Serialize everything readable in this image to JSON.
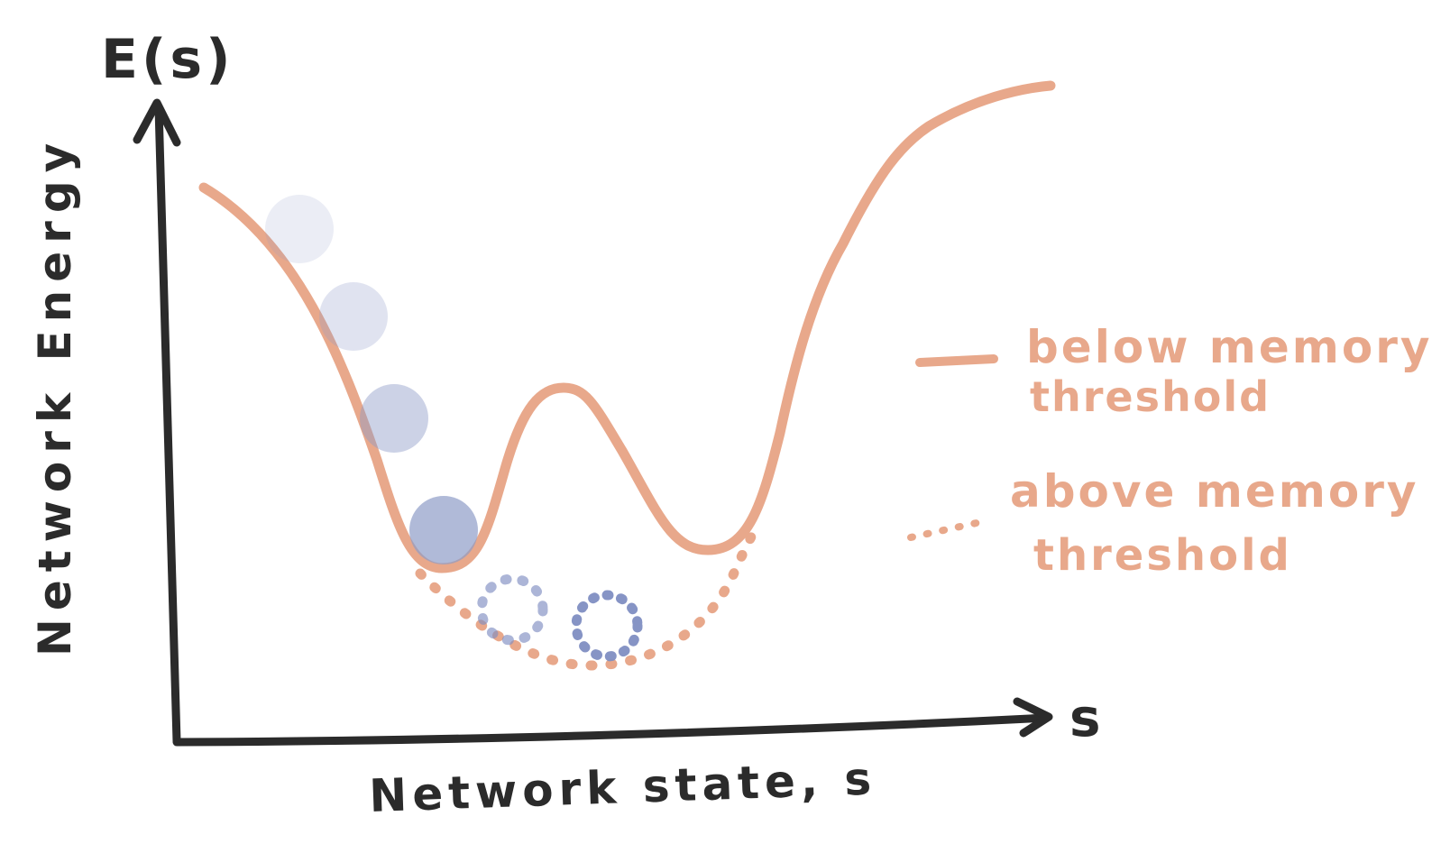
{
  "diagram": {
    "y_axis_symbol": "E(s)",
    "x_axis_symbol": "s",
    "y_axis_label": "Network Energy",
    "x_axis_label": "Network state, s",
    "legend": {
      "solid": {
        "line1": "below memory",
        "line2": "threshold"
      },
      "dotted": {
        "line1": "above memory",
        "line2": "threshold"
      }
    },
    "colors": {
      "curve": "#E8A88B",
      "axis": "#2B2B2B",
      "ball": "#8E9CC8",
      "ball_dotted": "#7F8EC2"
    },
    "balls": [
      {
        "opacity": 0.18
      },
      {
        "opacity": 0.28
      },
      {
        "opacity": 0.45
      },
      {
        "opacity": 0.7
      }
    ],
    "dotted_balls": [
      {
        "opacity": 0.65
      },
      {
        "opacity": 0.95
      }
    ]
  }
}
